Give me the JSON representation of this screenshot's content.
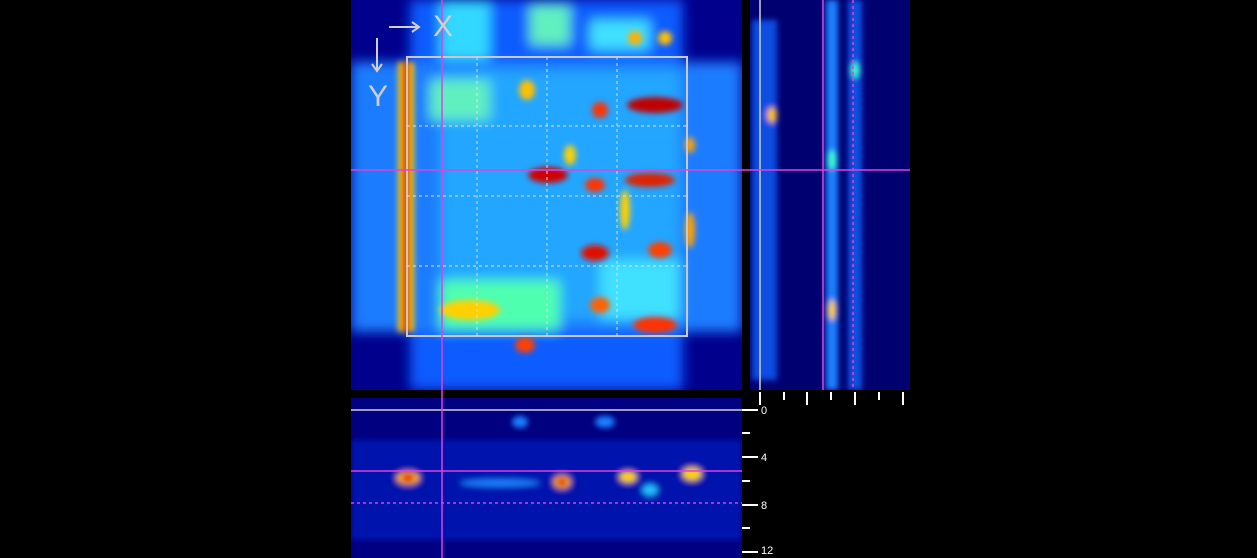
{
  "orientation": {
    "x_label": "X",
    "y_label": "Y"
  },
  "depth_ruler": {
    "labels": [
      "0",
      "4",
      "8",
      "12"
    ]
  }
}
